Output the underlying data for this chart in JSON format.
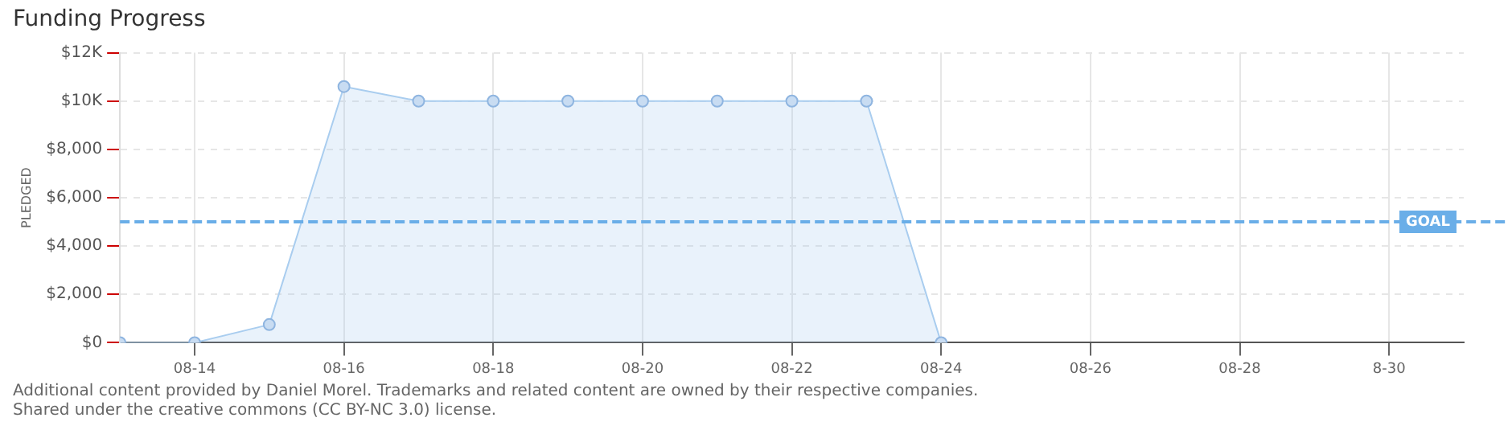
{
  "chart_data": {
    "type": "area",
    "title": "Funding Progress",
    "ylabel": "PLEDGED",
    "x": [
      "--08-13",
      "--08-14",
      "--08-15",
      "--08-16",
      "--08-17",
      "--08-18",
      "--08-19",
      "--08-20",
      "--08-21",
      "--08-22",
      "--08-23",
      "--08-24"
    ],
    "series": [
      {
        "color": "#a9cdef",
        "values": [
          0,
          0,
          750,
          10600,
          10000,
          10000,
          10000,
          10000,
          10000,
          10000,
          10000,
          0
        ]
      }
    ],
    "xlim": [
      "--08-13",
      "--08-31"
    ],
    "xticks": [
      {
        "value": "--08-14",
        "label": "08-14"
      },
      {
        "value": "--08-16",
        "label": "08-16"
      },
      {
        "value": "--08-18",
        "label": "08-18"
      },
      {
        "value": "--08-20",
        "label": "08-20"
      },
      {
        "value": "--08-22",
        "label": "08-22"
      },
      {
        "value": "--08-24",
        "label": "08-24"
      },
      {
        "value": "--08-26",
        "label": "08-26"
      },
      {
        "value": "--08-28",
        "label": "08-28"
      },
      {
        "value": "--08-30",
        "label": "8-30"
      }
    ],
    "ylim": [
      0,
      12000
    ],
    "yticks": [
      {
        "value": 0,
        "label": "$0"
      },
      {
        "value": 2000,
        "label": "$2,000"
      },
      {
        "value": 4000,
        "label": "$4,000"
      },
      {
        "value": 6000,
        "label": "$6,000"
      },
      {
        "value": 8000,
        "label": "$8,000"
      },
      {
        "value": 10000,
        "label": "$10K"
      },
      {
        "value": 12000,
        "label": "$12K"
      }
    ],
    "ref_lines": [
      {
        "axis": "y",
        "value": 5000,
        "label": "GOAL",
        "color": "#6aaee8",
        "line_style": "dashed"
      }
    ],
    "grid": true,
    "legend": false,
    "marker": "circle",
    "line_style": "solid",
    "annotations": [
      "Additional content provided by Daniel Morel. Trademarks and related content are owned by their respective companies.",
      "Shared under the creative commons (CC BY-NC 3.0) license."
    ]
  }
}
